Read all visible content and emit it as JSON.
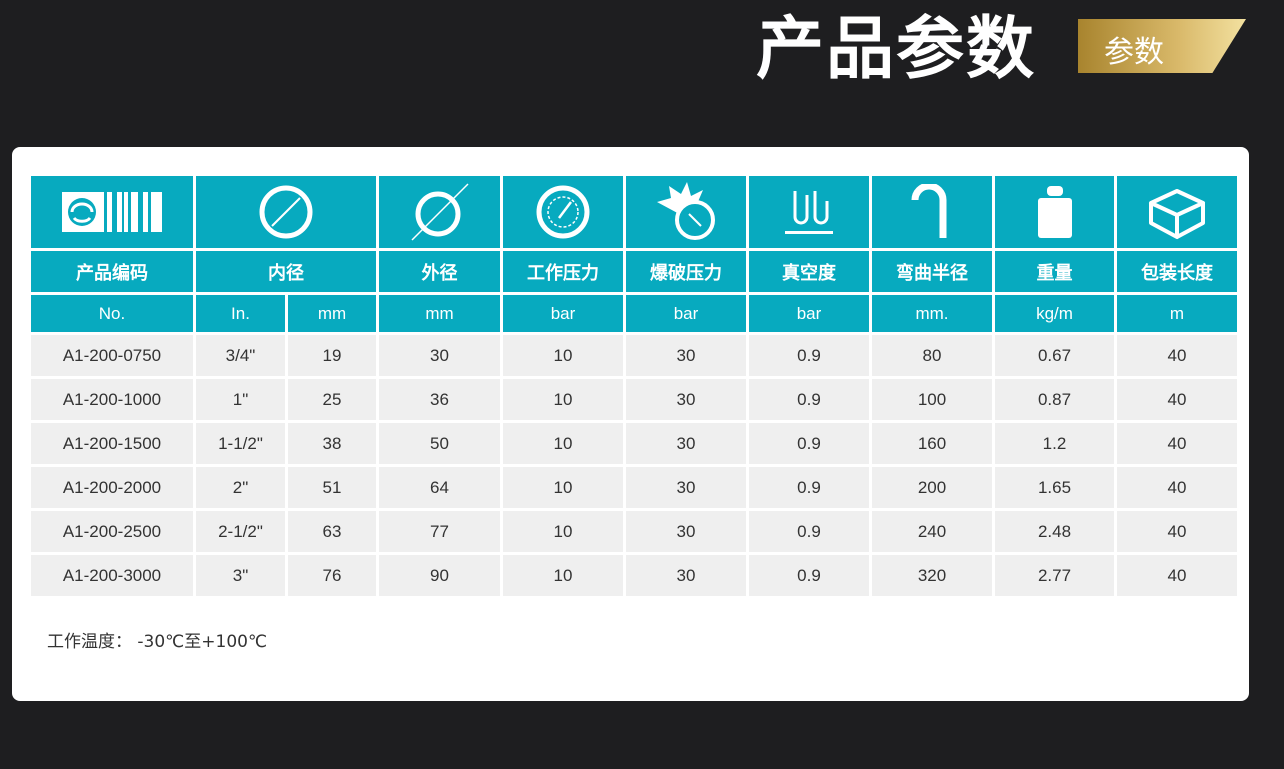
{
  "header": {
    "title": "产品参数",
    "tag": "参数"
  },
  "table": {
    "icons": [
      "barcode-icon",
      "inner-diameter-icon",
      "outer-diameter-icon",
      "pressure-gauge-icon",
      "burst-gauge-icon",
      "vacuum-icon",
      "bend-radius-icon",
      "weight-icon",
      "package-box-icon"
    ],
    "labels": [
      "产品编码",
      "内径",
      "外径",
      "工作压力",
      "爆破压力",
      "真空度",
      "弯曲半径",
      "重量",
      "包装长度"
    ],
    "units": [
      "No.",
      "In.",
      "mm",
      "mm",
      "bar",
      "bar",
      "bar",
      "mm.",
      "kg/m",
      "m"
    ],
    "rows": [
      [
        "A1-200-0750",
        "3/4\"",
        "19",
        "30",
        "10",
        "30",
        "0.9",
        "80",
        "0.67",
        "40"
      ],
      [
        "A1-200-1000",
        "1\"",
        "25",
        "36",
        "10",
        "30",
        "0.9",
        "100",
        "0.87",
        "40"
      ],
      [
        "A1-200-1500",
        "1-1/2\"",
        "38",
        "50",
        "10",
        "30",
        "0.9",
        "160",
        "1.2",
        "40"
      ],
      [
        "A1-200-2000",
        "2\"",
        "51",
        "64",
        "10",
        "30",
        "0.9",
        "200",
        "1.65",
        "40"
      ],
      [
        "A1-200-2500",
        "2-1/2\"",
        "63",
        "77",
        "10",
        "30",
        "0.9",
        "240",
        "2.48",
        "40"
      ],
      [
        "A1-200-3000",
        "3\"",
        "76",
        "90",
        "10",
        "30",
        "0.9",
        "320",
        "2.77",
        "40"
      ]
    ]
  },
  "note": "工作温度： -30℃至+100℃",
  "colors": {
    "header": "#07aabf",
    "row": "#efefef",
    "background": "#1e1e20",
    "gold": "#d9b96a"
  }
}
